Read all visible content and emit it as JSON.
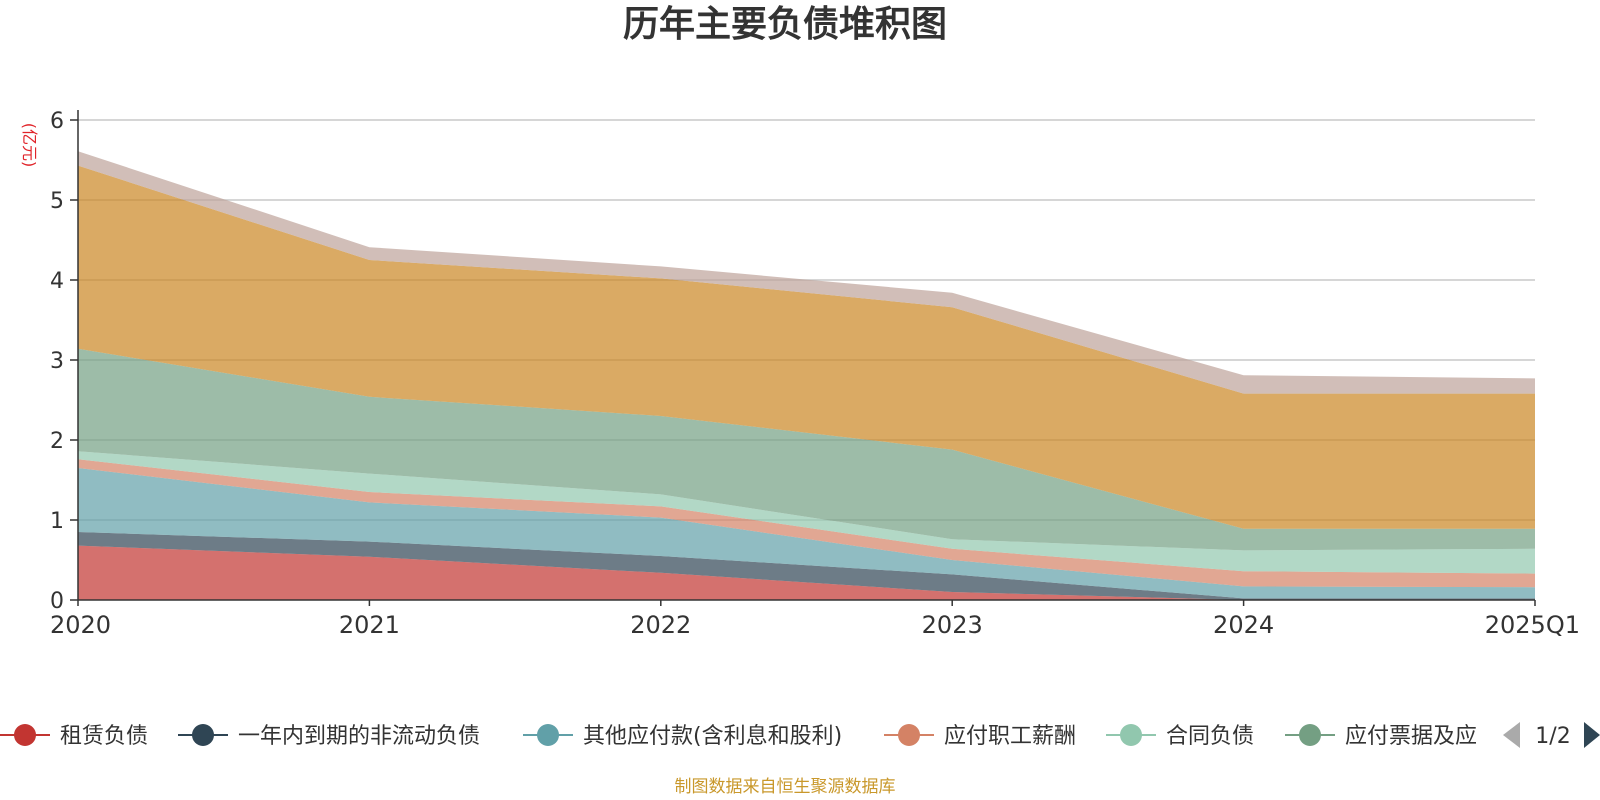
{
  "chart_data": {
    "type": "area",
    "stacked": true,
    "title": "历年主要负债堆积图",
    "unit_label": "(亿元)",
    "categories": [
      "2020",
      "2021",
      "2022",
      "2023",
      "2024",
      "2025Q1"
    ],
    "ylim": [
      0,
      6
    ],
    "yticks": [
      "0",
      "1",
      "2",
      "3",
      "4",
      "5",
      "6"
    ],
    "grid": true,
    "series": [
      {
        "name": "租赁负债",
        "color": "#c23531",
        "values": [
          0.68,
          0.54,
          0.34,
          0.1,
          0.0,
          0.0
        ]
      },
      {
        "name": "一年内到期的非流动负债",
        "color": "#2f4554",
        "values": [
          0.17,
          0.19,
          0.21,
          0.22,
          0.02,
          0.02
        ]
      },
      {
        "name": "其他应付款(含利息和股利)",
        "color": "#61a0a8",
        "values": [
          0.8,
          0.49,
          0.48,
          0.18,
          0.15,
          0.14
        ]
      },
      {
        "name": "应付职工薪酬",
        "color": "#d48265",
        "values": [
          0.11,
          0.13,
          0.14,
          0.14,
          0.19,
          0.17
        ]
      },
      {
        "name": "合同负债",
        "color": "#91c7ae",
        "values": [
          0.1,
          0.23,
          0.15,
          0.12,
          0.26,
          0.31
        ]
      },
      {
        "name": "应付票据及应付账款",
        "color": "#749f83",
        "values": [
          1.28,
          0.96,
          0.98,
          1.12,
          0.27,
          0.25
        ]
      },
      {
        "name": "",
        "color": "#ca8622",
        "values": [
          2.29,
          1.71,
          1.72,
          1.78,
          1.69,
          1.69
        ]
      },
      {
        "name": "",
        "color": "#bda29a",
        "values": [
          0.18,
          0.16,
          0.15,
          0.18,
          0.23,
          0.19
        ]
      }
    ],
    "legend": {
      "position": "bottom",
      "items": [
        "租赁负债",
        "一年内到期的非流动负债",
        "其他应付款(含利息和股利)",
        "应付职工薪酬",
        "合同负债",
        "应付票据及应"
      ],
      "page": "1/2"
    },
    "source": "制图数据来自恒生聚源数据库"
  }
}
